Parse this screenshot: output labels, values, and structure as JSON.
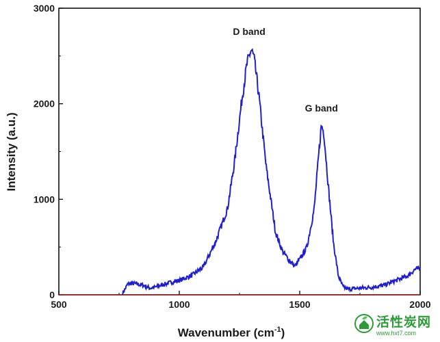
{
  "chart_data": {
    "type": "line",
    "title": "",
    "xlabel": "Wavenumber (cm",
    "xlabel_sup": "-1",
    "xlabel_end": ")",
    "ylabel": "Intensity (a.u.)",
    "xlim": [
      500,
      2000
    ],
    "ylim": [
      0,
      3000
    ],
    "xticks": [
      "500",
      "1000",
      "1500",
      "2000"
    ],
    "yticks": [
      "0",
      "1000",
      "2000",
      "3000"
    ],
    "grid": false,
    "line_color": "#1f1fcc",
    "baseline_color": "#8b1a1a",
    "annotations": [
      {
        "text": "D band",
        "x": 1290,
        "y": 2720
      },
      {
        "text": "G band",
        "x": 1590,
        "y": 1920
      }
    ],
    "series": [
      {
        "x": [
          765,
          775,
          785,
          800,
          820,
          850,
          880,
          900,
          950,
          1000,
          1050,
          1100,
          1150,
          1200,
          1230,
          1260,
          1280,
          1295,
          1300,
          1310,
          1330,
          1360,
          1400,
          1430,
          1460,
          1480,
          1500,
          1530,
          1560,
          1580,
          1590,
          1600,
          1620,
          1640,
          1660,
          1680,
          1700,
          1750,
          1800,
          1850,
          1900,
          1950,
          1980,
          2000
        ],
        "y": [
          20,
          60,
          110,
          120,
          115,
          100,
          70,
          80,
          120,
          150,
          200,
          290,
          550,
          900,
          1400,
          2050,
          2400,
          2540,
          2560,
          2480,
          2100,
          1350,
          650,
          450,
          350,
          300,
          370,
          500,
          900,
          1500,
          1780,
          1700,
          1100,
          550,
          200,
          80,
          60,
          70,
          80,
          100,
          150,
          200,
          270,
          270
        ]
      }
    ]
  },
  "watermark": {
    "icon": "leaf-house-logo-icon",
    "title": "活性炭网",
    "url": "www.hxt7.com"
  }
}
